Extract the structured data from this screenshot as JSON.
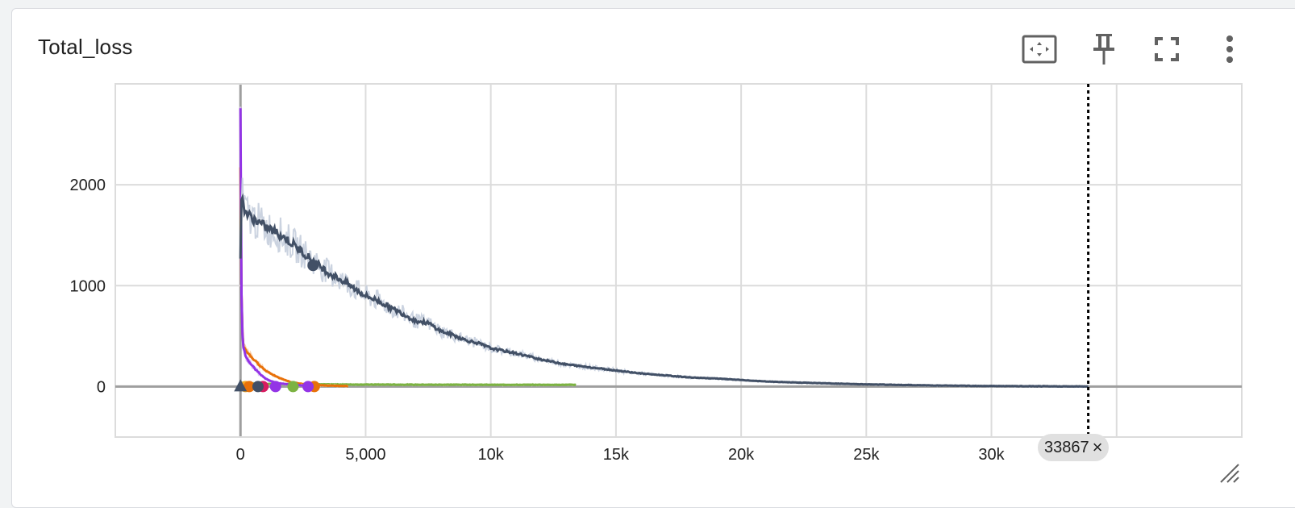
{
  "card": {
    "title": "Total_loss"
  },
  "toolbar": {
    "fit_icon": "fit-domain-icon",
    "pin_icon": "pin-icon",
    "fullscreen_icon": "fullscreen-icon",
    "more_icon": "more-vert-icon"
  },
  "cursor": {
    "step_label": "33867",
    "close_symbol": "×",
    "step": 33867
  },
  "colors": {
    "axis": "#9e9e9e",
    "grid": "#dcdcdc",
    "cursor_line": "#000000",
    "chip_bg": "#e0e0e0"
  },
  "chart_data": {
    "type": "line",
    "title": "Total_loss",
    "xlabel": "",
    "ylabel": "",
    "xlim": [
      -5000,
      40000
    ],
    "ylim": [
      -500,
      3000
    ],
    "x_ticks": [
      0,
      5000,
      10000,
      15000,
      20000,
      25000,
      30000
    ],
    "x_tick_labels": [
      "0",
      "5,000",
      "10k",
      "15k",
      "20k",
      "25k",
      "30k"
    ],
    "y_ticks": [
      0,
      1000,
      2000
    ],
    "y_tick_labels": [
      "0",
      "1000",
      "2000"
    ],
    "grid": true,
    "legend": "none",
    "series": [
      {
        "color": "#425066",
        "raw_color": "#c5cedd",
        "x": [
          0,
          50,
          100,
          300,
          600,
          1000,
          1500,
          2000,
          2500,
          3000,
          3500,
          4000,
          4500,
          5000,
          5500,
          6000,
          6500,
          7000,
          7500,
          8000,
          8500,
          9000,
          9500,
          10000,
          11000,
          12000,
          13000,
          14000,
          15000,
          16000,
          17000,
          18000,
          19000,
          20000,
          21000,
          22000,
          23000,
          24000,
          25000,
          26000,
          27000,
          28000,
          29000,
          30000,
          31000,
          32000,
          33000,
          33867
        ],
        "y": [
          1300,
          1950,
          1800,
          1700,
          1650,
          1580,
          1520,
          1430,
          1330,
          1230,
          1130,
          1060,
          980,
          900,
          850,
          780,
          720,
          650,
          630,
          550,
          510,
          460,
          430,
          380,
          330,
          270,
          220,
          190,
          160,
          130,
          110,
          90,
          80,
          65,
          50,
          42,
          35,
          28,
          22,
          18,
          14,
          10,
          8,
          6,
          4,
          3,
          2,
          1
        ]
      },
      {
        "color": "#9334e6",
        "raw_color": "#d9b8f5",
        "x": [
          0,
          20,
          50,
          100,
          200,
          400,
          600,
          800,
          1000,
          1200,
          1500,
          2000,
          2500,
          2800
        ],
        "y": [
          2750,
          1350,
          700,
          420,
          300,
          230,
          170,
          120,
          80,
          55,
          35,
          20,
          12,
          8
        ]
      },
      {
        "color": "#e8710a",
        "raw_color": "#f8caa3",
        "x": [
          0,
          20,
          60,
          120,
          300,
          600,
          1000,
          1500,
          2000,
          2500,
          3000,
          3500,
          4000,
          4300
        ],
        "y": [
          2200,
          1200,
          600,
          400,
          330,
          250,
          160,
          90,
          45,
          25,
          15,
          10,
          6,
          5
        ]
      },
      {
        "color": "#7cb342",
        "raw_color": "#c5e1a5",
        "x": [
          0,
          200,
          500,
          1000,
          1500,
          2000,
          3000,
          4000,
          5000,
          6000,
          7000,
          8000,
          9000,
          10000,
          11000,
          12000,
          13000,
          13400
        ],
        "y": [
          40,
          35,
          30,
          28,
          25,
          24,
          22,
          21,
          20,
          20,
          19,
          19,
          19,
          18,
          18,
          18,
          18,
          18
        ]
      }
    ],
    "markers": [
      {
        "color": "#425066",
        "x": 2900,
        "y": 1200
      },
      {
        "color": "#f5a623",
        "x": 200,
        "y": 0
      },
      {
        "color": "#e8710a",
        "x": 350,
        "y": 0
      },
      {
        "color": "#d81b60",
        "x": 900,
        "y": 0
      },
      {
        "color": "#425066",
        "x": 700,
        "y": 0
      },
      {
        "color": "#9334e6",
        "x": 1400,
        "y": 0
      },
      {
        "color": "#7cb342",
        "x": 2100,
        "y": 0
      },
      {
        "color": "#e8710a",
        "x": 2950,
        "y": 0
      },
      {
        "color": "#9334e6",
        "x": 2700,
        "y": 0
      },
      {
        "color": "#425066",
        "x": 0,
        "y": 0,
        "shape": "triangle"
      }
    ]
  }
}
